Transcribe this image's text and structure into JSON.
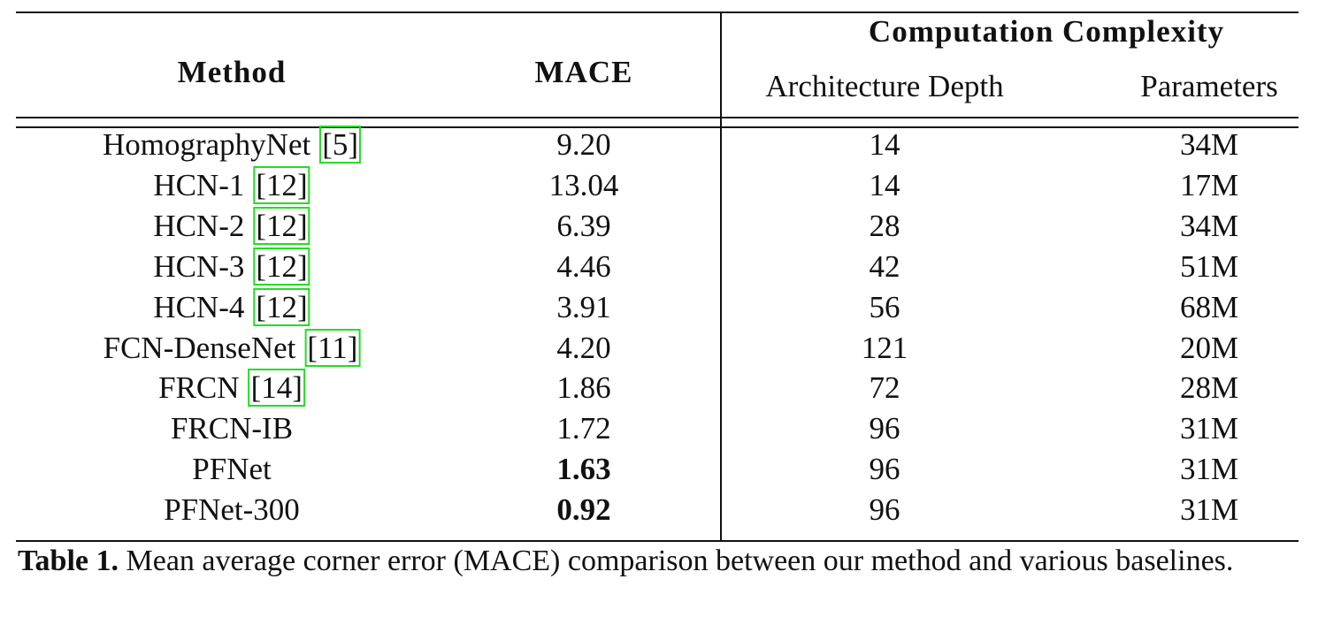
{
  "table": {
    "header": {
      "method": "Method",
      "mace": "MACE",
      "group": "Computation Complexity",
      "depth": "Architecture Depth",
      "params": "Parameters"
    },
    "rows": [
      {
        "method": "HomographyNet",
        "cite": "[5]",
        "mace": "9.20",
        "depth": 14,
        "params": "34M"
      },
      {
        "method": "HCN-1",
        "cite": "[12]",
        "mace": "13.04",
        "depth": 14,
        "params": "17M"
      },
      {
        "method": "HCN-2",
        "cite": "[12]",
        "mace": "6.39",
        "depth": 28,
        "params": "34M"
      },
      {
        "method": "HCN-3",
        "cite": "[12]",
        "mace": "4.46",
        "depth": 42,
        "params": "51M"
      },
      {
        "method": "HCN-4",
        "cite": "[12]",
        "mace": "3.91",
        "depth": 56,
        "params": "68M"
      },
      {
        "method": "FCN-DenseNet",
        "cite": "[11]",
        "mace": "4.20",
        "depth": 121,
        "params": "20M"
      },
      {
        "method": "FRCN",
        "cite": "[14]",
        "mace": "1.86",
        "depth": 72,
        "params": "28M"
      },
      {
        "method": "FRCN-IB",
        "mace": "1.72",
        "depth": 96,
        "params": "31M"
      },
      {
        "method": "PFNet",
        "mace": "1.63",
        "depth": 96,
        "params": "31M",
        "best": true
      },
      {
        "method": "PFNet-300",
        "mace": "0.92",
        "depth": 96,
        "params": "31M",
        "best": true
      }
    ]
  },
  "caption": {
    "label": "Table 1.",
    "text": "Mean average corner error (MACE) comparison between our method and various baselines."
  }
}
